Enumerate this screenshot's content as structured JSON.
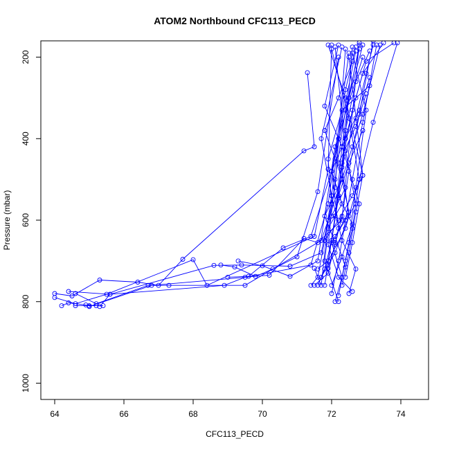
{
  "chart_data": {
    "type": "line",
    "title": "ATOM2 Northbound CFC113_PECD",
    "xlabel": "CFC113_PECD",
    "ylabel": "Pressure (mbar)",
    "xlim": [
      63.6,
      74.8
    ],
    "ylim": [
      1040,
      160
    ],
    "y_reversed": true,
    "x_ticks": [
      64,
      66,
      68,
      70,
      72,
      74
    ],
    "y_ticks": [
      200,
      400,
      600,
      800,
      1000
    ],
    "series_color": "#0000ff",
    "marker": "open-circle",
    "grid": false,
    "legend": "none",
    "profiles": [
      {
        "x": [
          64.0,
          64.5,
          65.3,
          66.4,
          67.0,
          67.7,
          71.2,
          71.5,
          71.3
        ],
        "y": [
          780,
          786,
          747,
          752,
          760,
          696,
          430,
          420,
          238
        ]
      },
      {
        "x": [
          64.0,
          64.6,
          65.5,
          68.0,
          68.4,
          71.5,
          71.9,
          72.0
        ],
        "y": [
          790,
          805,
          782,
          697,
          760,
          640,
          475,
          170
        ]
      },
      {
        "x": [
          64.2,
          64.4,
          64.9,
          65.2,
          65.4,
          65.0,
          64.6
        ],
        "y": [
          810,
          803,
          808,
          810,
          810,
          810,
          810
        ]
      },
      {
        "x": [
          64.4,
          65.6,
          68.6,
          69.4,
          70.8,
          71.7,
          72.1,
          72.4
        ],
        "y": [
          775,
          782,
          711,
          710,
          713,
          680,
          520,
          180
        ]
      },
      {
        "x": [
          64.6,
          65.2,
          66.7,
          67.3,
          69.5,
          71.7,
          72.3,
          72.6
        ],
        "y": [
          780,
          805,
          760,
          760,
          760,
          650,
          500,
          175
        ]
      },
      {
        "x": [
          65.0,
          66.8,
          70.2,
          71.2,
          71.6,
          72.3,
          72.8
        ],
        "y": [
          812,
          760,
          735,
          645,
          655,
          600,
          165
        ]
      },
      {
        "x": [
          65.3,
          65.6,
          68.9,
          69.5,
          71.4,
          71.9,
          72.5
        ],
        "y": [
          812,
          782,
          760,
          740,
          710,
          560,
          190
        ]
      },
      {
        "x": [
          68.8,
          69.2,
          69.8,
          70.3,
          71.0,
          71.6,
          72.2
        ],
        "y": [
          710,
          715,
          738,
          720,
          690,
          530,
          200
        ]
      },
      {
        "x": [
          69.0,
          69.6,
          70.6,
          71.4,
          72.0,
          72.7
        ],
        "y": [
          740,
          738,
          668,
          640,
          480,
          185
        ]
      },
      {
        "x": [
          69.3,
          70.0,
          70.8,
          71.6,
          72.1,
          72.9
        ],
        "y": [
          700,
          712,
          738,
          700,
          420,
          200
        ]
      },
      {
        "x": [
          71.4,
          71.6,
          71.8,
          72.0,
          72.2,
          72.4,
          72.7
        ],
        "y": [
          760,
          740,
          650,
          540,
          400,
          280,
          175
        ]
      },
      {
        "x": [
          71.5,
          71.7,
          71.9,
          72.1,
          72.3,
          72.5,
          72.9
        ],
        "y": [
          718,
          760,
          600,
          590,
          420,
          300,
          170
        ]
      },
      {
        "x": [
          71.6,
          71.8,
          72.0,
          72.2,
          72.4,
          72.7,
          73.1
        ],
        "y": [
          760,
          720,
          650,
          545,
          380,
          260,
          185
        ]
      },
      {
        "x": [
          71.7,
          71.9,
          72.1,
          72.3,
          72.6,
          72.9,
          73.5
        ],
        "y": [
          740,
          700,
          590,
          460,
          330,
          240,
          165
        ]
      },
      {
        "x": [
          71.8,
          72.0,
          72.2,
          72.4,
          72.7,
          73.0,
          73.8
        ],
        "y": [
          760,
          650,
          540,
          400,
          300,
          210,
          165
        ]
      },
      {
        "x": [
          71.9,
          72.1,
          72.3,
          72.5,
          72.8,
          73.2
        ],
        "y": [
          718,
          660,
          590,
          480,
          340,
          160
        ]
      },
      {
        "x": [
          72.0,
          72.2,
          72.4,
          72.6,
          72.9,
          73.3
        ],
        "y": [
          780,
          700,
          600,
          500,
          360,
          170
        ]
      },
      {
        "x": [
          72.1,
          72.3,
          72.5,
          72.7,
          73.0,
          72.6
        ],
        "y": [
          800,
          740,
          655,
          520,
          330,
          190
        ]
      },
      {
        "x": [
          72.2,
          72.4,
          72.6,
          72.8,
          72.5,
          72.0
        ],
        "y": [
          785,
          700,
          620,
          500,
          350,
          180
        ]
      },
      {
        "x": [
          72.3,
          72.5,
          72.7,
          72.9,
          72.4,
          71.9
        ],
        "y": [
          760,
          680,
          580,
          490,
          300,
          170
        ]
      },
      {
        "x": [
          72.4,
          72.6,
          72.8,
          72.3,
          71.8,
          72.2
        ],
        "y": [
          740,
          655,
          560,
          420,
          320,
          170
        ]
      },
      {
        "x": [
          72.5,
          72.7,
          72.3,
          72.0,
          71.7,
          72.3
        ],
        "y": [
          780,
          720,
          650,
          540,
          400,
          175
        ]
      },
      {
        "x": [
          72.6,
          72.2,
          71.9,
          72.1,
          72.4,
          72.8
        ],
        "y": [
          775,
          740,
          660,
          500,
          330,
          180
        ]
      },
      {
        "x": [
          72.2,
          71.8,
          72.0,
          71.9,
          72.3,
          73.1
        ],
        "y": [
          800,
          700,
          560,
          450,
          330,
          270
        ]
      },
      {
        "x": [
          71.5,
          71.9,
          72.2,
          72.0,
          72.5,
          72.8
        ],
        "y": [
          760,
          730,
          620,
          480,
          300,
          170
        ]
      },
      {
        "x": [
          71.7,
          72.1,
          72.5,
          72.3,
          72.7,
          73.0,
          73.2
        ],
        "y": [
          740,
          680,
          590,
          470,
          350,
          240,
          170
        ]
      },
      {
        "x": [
          72.0,
          72.4,
          72.1,
          71.8,
          72.2,
          72.6
        ],
        "y": [
          590,
          520,
          450,
          380,
          300,
          210
        ]
      },
      {
        "x": [
          72.1,
          71.8,
          72.3,
          72.6,
          72.9,
          73.4
        ],
        "y": [
          655,
          590,
          500,
          420,
          340,
          170
        ]
      },
      {
        "x": [
          71.9,
          72.3,
          72.0,
          72.4,
          72.8,
          73.1
        ],
        "y": [
          620,
          560,
          480,
          400,
          330,
          250
        ]
      },
      {
        "x": [
          72.3,
          72.0,
          72.5,
          72.2,
          72.7,
          73.0
        ],
        "y": [
          740,
          655,
          580,
          460,
          370,
          290
        ]
      },
      {
        "x": [
          71.8,
          72.2,
          72.6,
          72.9,
          72.5
        ],
        "y": [
          650,
          600,
          540,
          490,
          200
        ]
      },
      {
        "x": [
          72.4,
          72.1,
          72.7,
          72.4,
          72.1
        ],
        "y": [
          715,
          640,
          560,
          430,
          175
        ]
      },
      {
        "x": [
          71.6,
          71.9,
          72.4,
          72.8,
          73.2,
          73.9
        ],
        "y": [
          720,
          700,
          620,
          500,
          360,
          165
        ]
      },
      {
        "x": [
          72.0,
          72.3,
          72.6,
          72.2,
          72.5,
          72.9
        ],
        "y": [
          760,
          690,
          610,
          540,
          460,
          380
        ]
      }
    ]
  }
}
